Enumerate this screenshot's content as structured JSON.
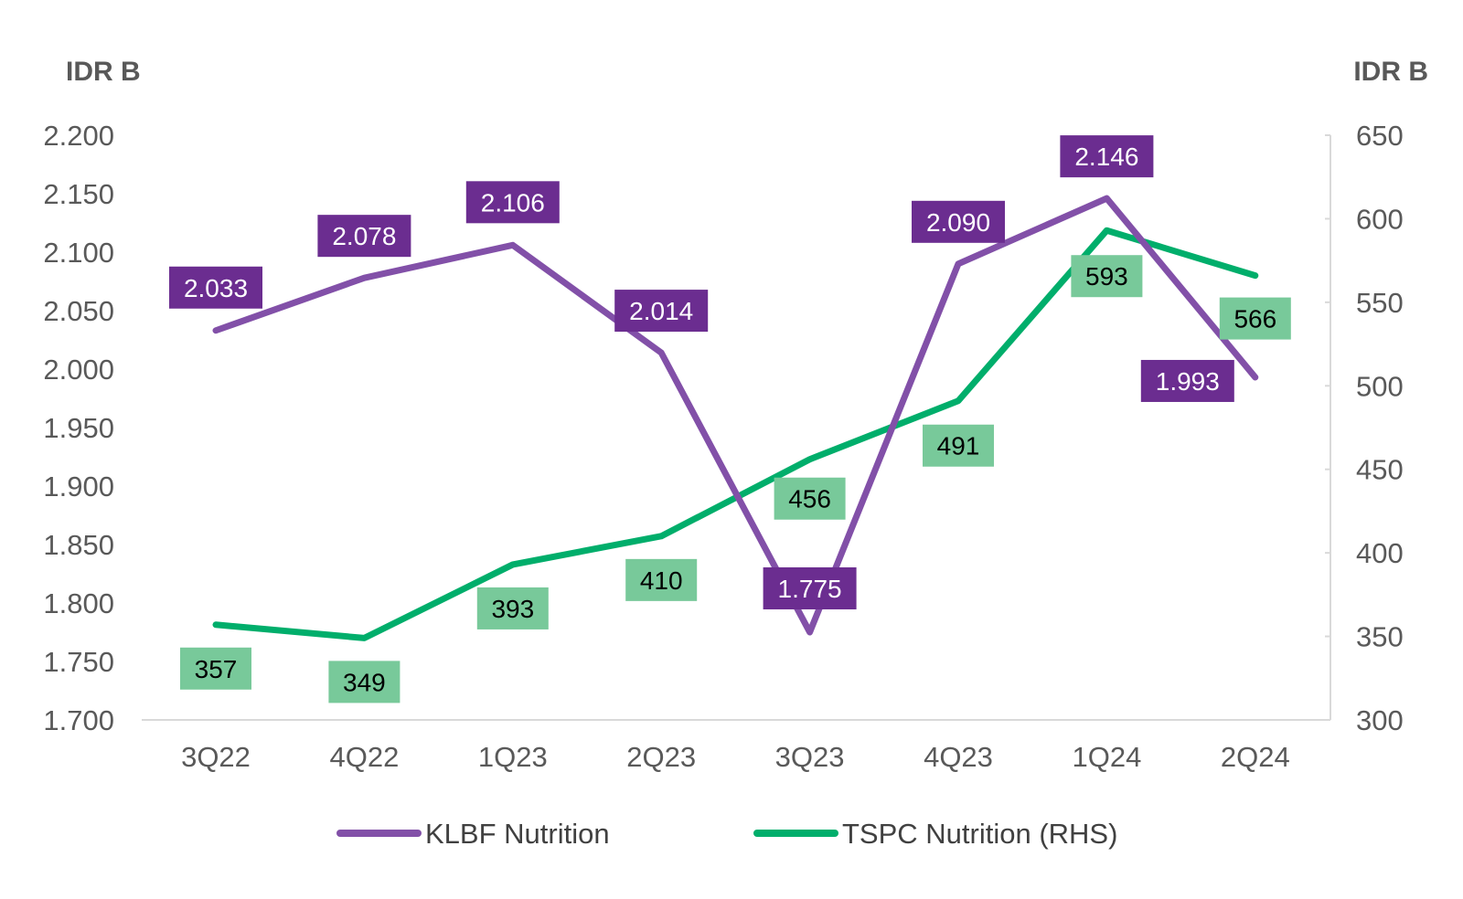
{
  "chart_data": {
    "type": "line",
    "categories": [
      "3Q22",
      "4Q22",
      "1Q23",
      "2Q23",
      "3Q23",
      "4Q23",
      "1Q24",
      "2Q24"
    ],
    "left_axis": {
      "unit": "IDR B",
      "range": [
        1700,
        2200
      ],
      "ticks": [
        1700,
        1750,
        1800,
        1850,
        1900,
        1950,
        2000,
        2050,
        2100,
        2150,
        2200
      ],
      "tick_labels": [
        "1.700",
        "1.750",
        "1.800",
        "1.850",
        "1.900",
        "1.950",
        "2.000",
        "2.050",
        "2.100",
        "2.150",
        "2.200"
      ]
    },
    "right_axis": {
      "unit": "IDR B",
      "range": [
        300,
        650
      ],
      "ticks": [
        300,
        350,
        400,
        450,
        500,
        550,
        600,
        650
      ],
      "tick_labels": [
        "300",
        "350",
        "400",
        "450",
        "500",
        "550",
        "600",
        "650"
      ]
    },
    "series": [
      {
        "name": "KLBF Nutrition",
        "axis": "left",
        "color": "#8250a8",
        "label_bg": "#6b2d90",
        "label_color": "#ffffff",
        "values": [
          2033,
          2078,
          2106,
          2014,
          1775,
          2090,
          2146,
          1993
        ],
        "labels": [
          "2.033",
          "2.078",
          "2.106",
          "2.014",
          "1.775",
          "2.090",
          "2.146",
          "1.993"
        ]
      },
      {
        "name": "TSPC Nutrition (RHS)",
        "axis": "right",
        "color": "#00ae6b",
        "label_bg": "#78c99a",
        "label_color": "#000000",
        "values": [
          357,
          349,
          393,
          410,
          456,
          491,
          593,
          566
        ],
        "labels": [
          "357",
          "349",
          "393",
          "410",
          "456",
          "491",
          "593",
          "566"
        ]
      }
    ],
    "grid": false,
    "legend": "bottom-center"
  }
}
